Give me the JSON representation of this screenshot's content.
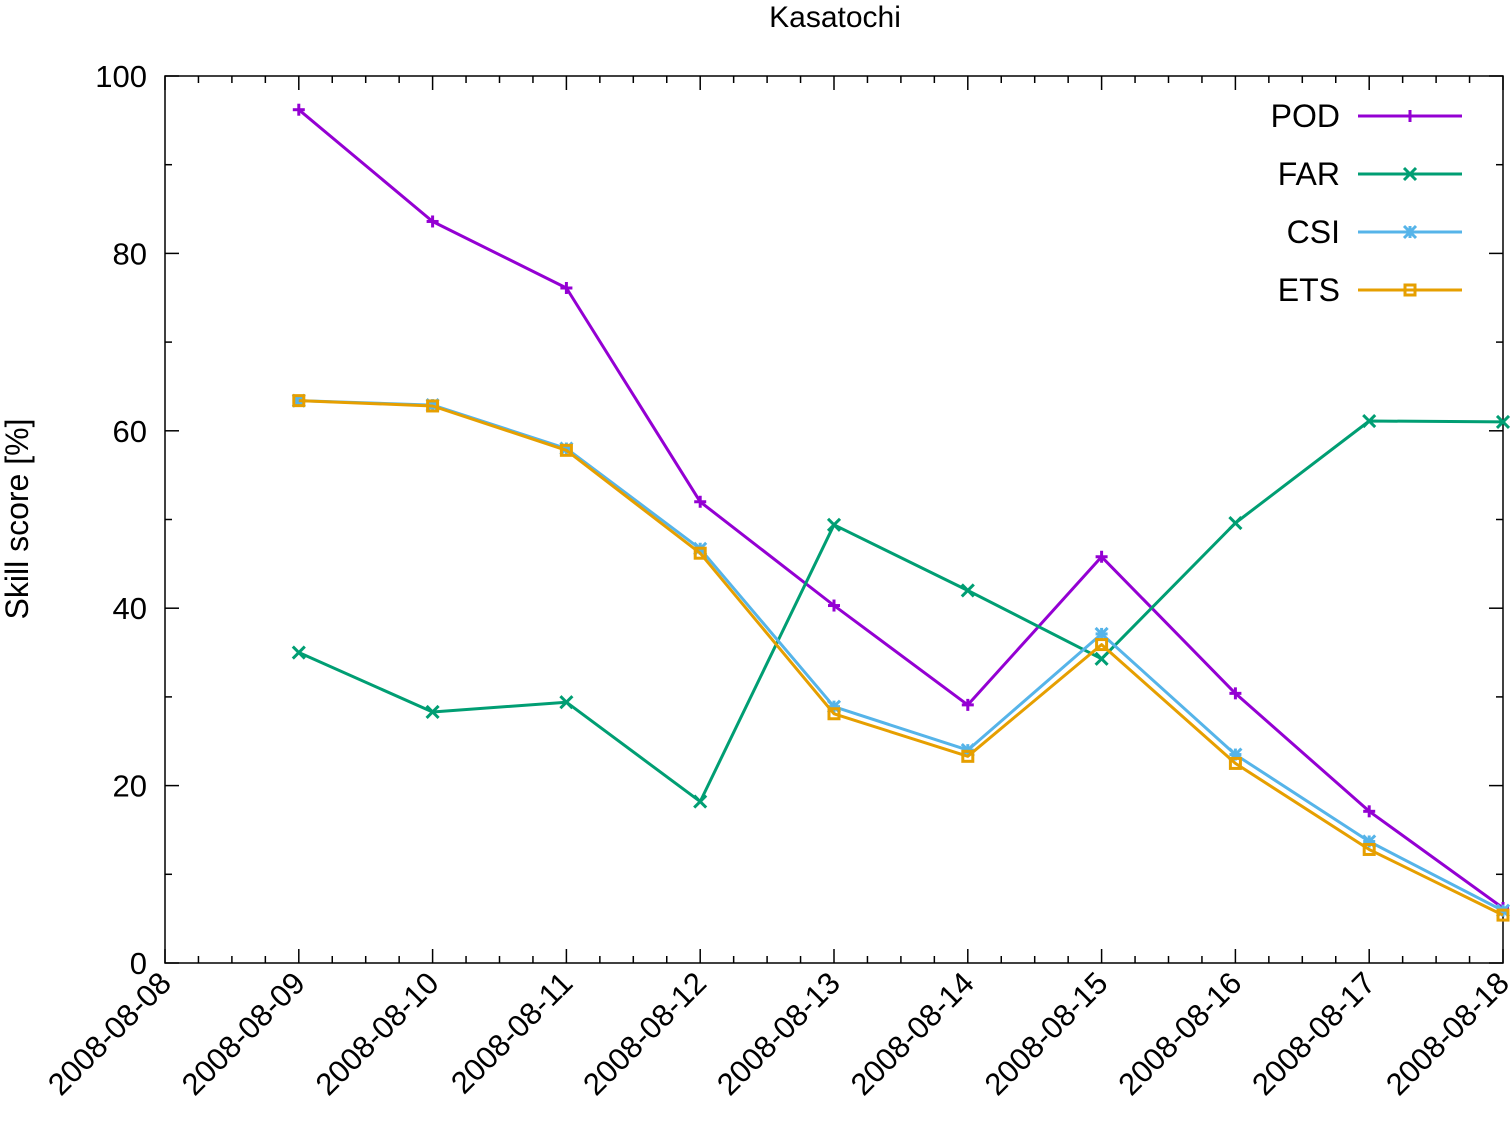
{
  "chart_data": {
    "type": "line",
    "title": "Kasatochi",
    "ylabel": "Skill score [%]",
    "xlabel": "",
    "x": [
      "2008-08-09",
      "2008-08-10",
      "2008-08-11",
      "2008-08-12",
      "2008-08-13",
      "2008-08-14",
      "2008-08-15",
      "2008-08-16",
      "2008-08-17",
      "2008-08-18"
    ],
    "x_ticks": [
      "2008-08-08",
      "2008-08-09",
      "2008-08-10",
      "2008-08-11",
      "2008-08-12",
      "2008-08-13",
      "2008-08-14",
      "2008-08-15",
      "2008-08-16",
      "2008-08-17",
      "2008-08-18"
    ],
    "xlim": [
      "2008-08-08",
      "2008-08-18"
    ],
    "ylim": [
      0,
      100
    ],
    "y_ticks": [
      0,
      20,
      40,
      60,
      80,
      100
    ],
    "grid": false,
    "legend_position": "top-right",
    "series": [
      {
        "name": "POD",
        "color": "#9400d3",
        "marker": "plus",
        "values": [
          96.2,
          83.6,
          76.1,
          52.0,
          40.3,
          29.1,
          45.8,
          30.4,
          17.1,
          6.2
        ]
      },
      {
        "name": "FAR",
        "color": "#009e73",
        "marker": "cross",
        "values": [
          35.0,
          28.3,
          29.4,
          18.2,
          49.4,
          42.0,
          34.3,
          49.6,
          61.1,
          61.0
        ]
      },
      {
        "name": "CSI",
        "color": "#56b4e9",
        "marker": "star",
        "values": [
          63.4,
          62.9,
          58.0,
          46.7,
          28.9,
          24.0,
          37.1,
          23.5,
          13.7,
          5.9
        ]
      },
      {
        "name": "ETS",
        "color": "#e69f00",
        "marker": "square",
        "values": [
          63.4,
          62.8,
          57.8,
          46.2,
          28.1,
          23.3,
          35.9,
          22.5,
          12.8,
          5.4
        ]
      }
    ]
  }
}
